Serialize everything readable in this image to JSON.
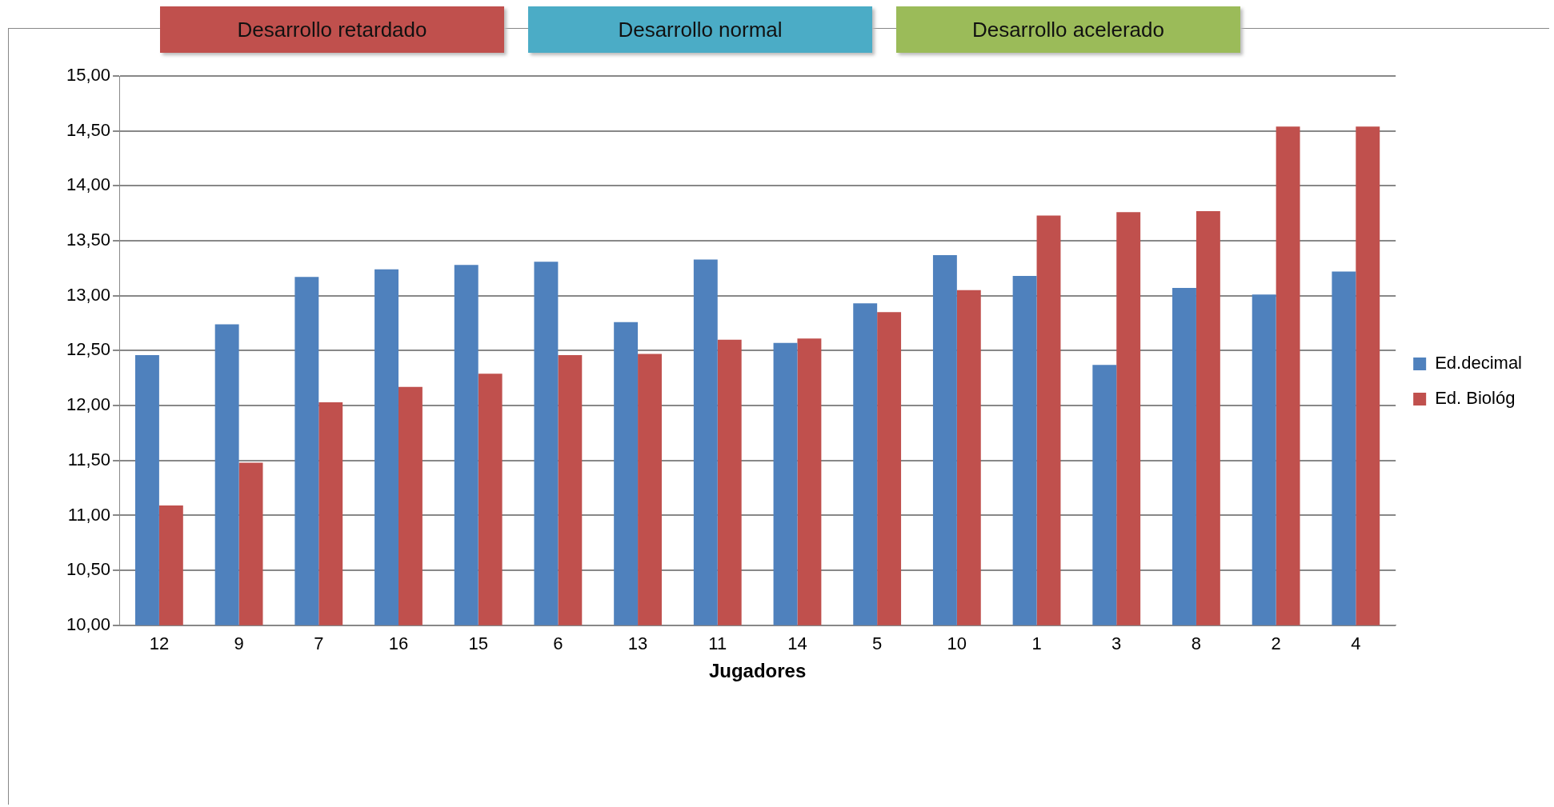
{
  "chart_data": {
    "type": "bar",
    "xlabel": "Jugadores",
    "categories": [
      "12",
      "9",
      "7",
      "16",
      "15",
      "6",
      "13",
      "11",
      "14",
      "5",
      "10",
      "1",
      "3",
      "8",
      "2",
      "4"
    ],
    "series": [
      {
        "name": "Ed.decimal",
        "color": "#4f81bd",
        "values": [
          12.46,
          12.74,
          13.17,
          13.24,
          13.28,
          13.31,
          12.76,
          13.33,
          12.57,
          12.93,
          13.37,
          13.18,
          12.37,
          13.07,
          13.01,
          13.22
        ]
      },
      {
        "name": "Ed. Biológ",
        "color": "#c0504d",
        "values": [
          11.09,
          11.48,
          12.03,
          12.17,
          12.29,
          12.46,
          12.47,
          12.6,
          12.61,
          12.85,
          13.05,
          13.73,
          13.76,
          13.77,
          14.54,
          14.54
        ]
      }
    ],
    "ylim": [
      10,
      15
    ],
    "yticks": [
      {
        "value": 10,
        "label": "10,00"
      },
      {
        "value": 10.5,
        "label": "10,50"
      },
      {
        "value": 11,
        "label": "11,00"
      },
      {
        "value": 11.5,
        "label": "11,50"
      },
      {
        "value": 12,
        "label": "12,00"
      },
      {
        "value": 12.5,
        "label": "12,50"
      },
      {
        "value": 13,
        "label": "13,00"
      },
      {
        "value": 13.5,
        "label": "13,50"
      },
      {
        "value": 14,
        "label": "14,00"
      },
      {
        "value": 14.5,
        "label": "14,50"
      },
      {
        "value": 15,
        "label": "15,00"
      }
    ],
    "annotations": [
      "Desarrollo retardado",
      "Desarrollo normal",
      "Desarrollo acelerado"
    ],
    "grid": "y",
    "legend": "right"
  }
}
